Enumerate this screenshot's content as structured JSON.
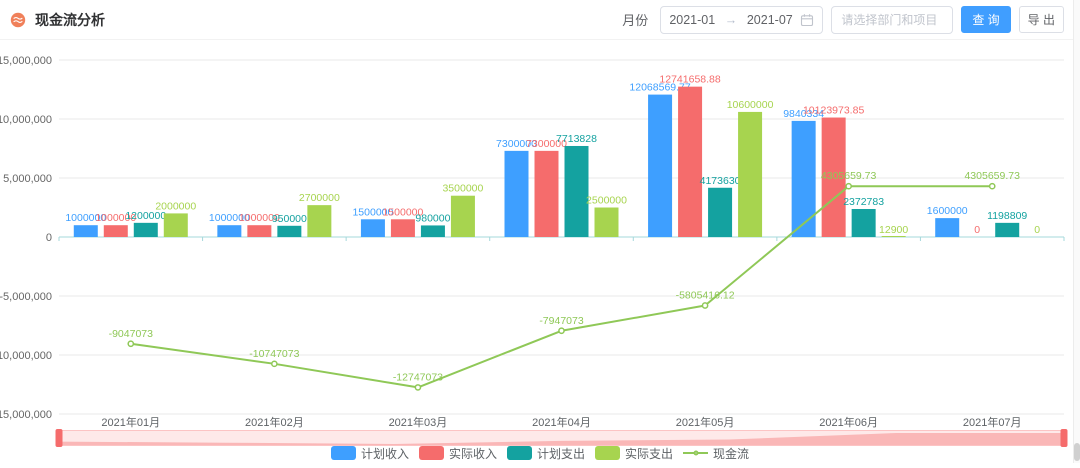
{
  "header": {
    "title": "现金流分析",
    "month_label": "月份",
    "date_start": "2021-01",
    "date_separator": "→",
    "date_end": "2021-07",
    "project_placeholder": "请选择部门和项目",
    "query_label": "查 询",
    "export_label": "导 出"
  },
  "colors": {
    "accent": "#409EFF",
    "grid": "#E9E9E9",
    "axis": "#A6D8DB",
    "y_tick_text": "#666666",
    "x_tick_text": "#5E6266",
    "slider_handle": "#F56C6C"
  },
  "chart_data": {
    "type": "bar-line-combo",
    "title": "现金流分析",
    "categories": [
      "2021年01月",
      "2021年02月",
      "2021年03月",
      "2021年04月",
      "2021年05月",
      "2021年06月",
      "2021年07月"
    ],
    "series": [
      {
        "name": "计划收入",
        "type": "bar",
        "color": "#3E9FFF",
        "values": [
          1000000,
          1000000,
          1500000,
          7300000,
          12068569.77,
          9840334,
          1600000
        ],
        "labels": [
          "1000000",
          "1000000",
          "1500000",
          "7300000",
          "12068569.77",
          "9840334",
          "1600000"
        ]
      },
      {
        "name": "实际收入",
        "type": "bar",
        "color": "#F56C6C",
        "values": [
          1000000,
          1000000,
          1500000,
          7300000,
          12741658.88,
          10123973.85,
          0
        ],
        "labels": [
          "1000000",
          "1000000",
          "1500000",
          "7300000",
          "12741658.88",
          "10123973.85",
          "0"
        ]
      },
      {
        "name": "计划支出",
        "type": "bar",
        "color": "#14A2A0",
        "values": [
          1200000,
          950000,
          980000,
          7713828,
          4173630,
          2372783,
          1198809
        ],
        "labels": [
          "1200000",
          "950000",
          "980000",
          "7713828",
          "4173630",
          "2372783",
          "1198809"
        ]
      },
      {
        "name": "实际支出",
        "type": "bar",
        "color": "#A7D44F",
        "values": [
          2000000,
          2700000,
          3500000,
          2500000,
          10600000,
          12900,
          0
        ],
        "labels": [
          "2000000",
          "2700000",
          "3500000",
          "2500000",
          "10600000",
          "12900",
          "0"
        ]
      },
      {
        "name": "现金流",
        "type": "line",
        "color": "#8FC857",
        "values": [
          -9047073,
          -10747073,
          -12747073,
          -7947073,
          -5805416.12,
          4305659.73,
          4305659.73
        ],
        "labels": [
          "-9047073",
          "-10747073",
          "-12747073",
          "-7947073",
          "-5805416.12",
          "4305659.73",
          "4305659.73"
        ]
      }
    ],
    "yticks": {
      "values": [
        15000000,
        10000000,
        5000000,
        0,
        -5000000,
        -10000000,
        -15000000
      ],
      "labels": [
        "15,000,000",
        "10,000,000",
        "5,000,000",
        "0",
        "-5,000,000",
        "-10,000,000",
        "-15,000,000"
      ]
    },
    "ylim": [
      -15000000,
      15000000
    ],
    "grid": true,
    "legend_position": "bottom",
    "has_datazoom_slider": true
  }
}
